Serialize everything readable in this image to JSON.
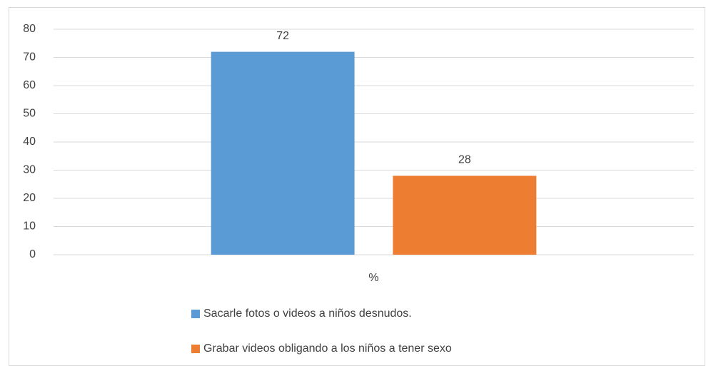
{
  "chart_data": {
    "type": "bar",
    "categories": [
      "%"
    ],
    "series": [
      {
        "name": "Sacarle fotos o videos a niños desnudos.",
        "color": "#5b9bd5",
        "values": [
          72
        ]
      },
      {
        "name": "Grabar videos obligando a los niños a tener sexo",
        "color": "#ed7d31",
        "values": [
          28
        ]
      }
    ],
    "ylim": [
      0,
      80
    ],
    "yticks": [
      0,
      10,
      20,
      30,
      40,
      50,
      60,
      70,
      80
    ],
    "grid": true,
    "legend": "bottom"
  }
}
